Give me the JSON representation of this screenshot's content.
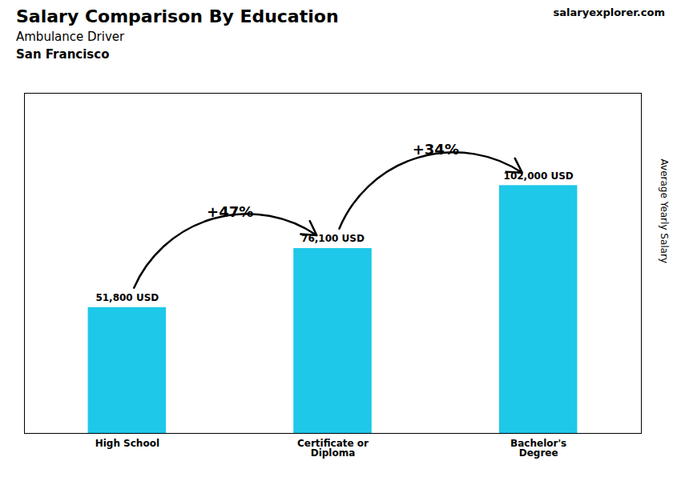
{
  "chart_data": {
    "type": "bar",
    "title": "Salary Comparison By Education",
    "subtitle": "Ambulance Driver",
    "annotations": [
      {
        "text": "San Francisco"
      },
      {
        "text": "salaryexplorer.com"
      },
      {
        "text": "+47%",
        "from": "High School",
        "to": "Certificate or\nDiploma"
      },
      {
        "text": "+34%",
        "from": "Certificate or\nDiploma",
        "to": "Bachelor's\nDegree"
      }
    ],
    "ylabel": "Average Yearly Salary",
    "categories": [
      "High School",
      "Certificate or\nDiploma",
      "Bachelor's\nDegree"
    ],
    "values": [
      51800,
      76100,
      102000
    ],
    "value_labels": [
      "51,800 USD",
      "76,100 USD",
      "102,000 USD"
    ],
    "color": "#1ec8e8",
    "ylim": [
      0,
      140000
    ],
    "yticks": [],
    "data_labels": true,
    "tick_labels": "x",
    "grid": false
  }
}
